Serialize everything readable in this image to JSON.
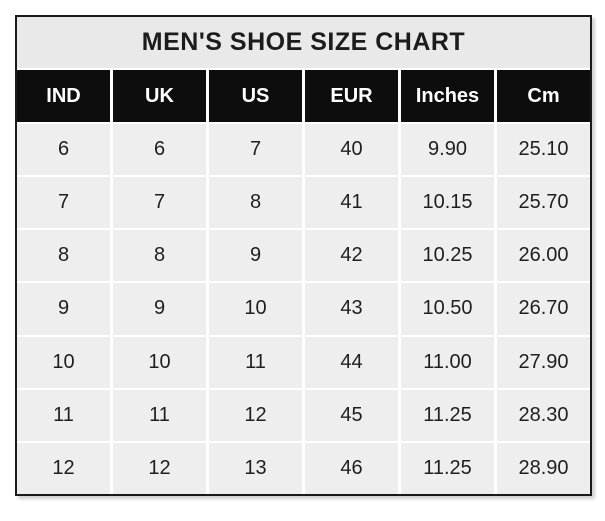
{
  "chart_data": {
    "type": "table",
    "title": "MEN'S SHOE SIZE CHART",
    "columns": [
      "IND",
      "UK",
      "US",
      "EUR",
      "Inches",
      "Cm"
    ],
    "rows": [
      [
        "6",
        "6",
        "7",
        "40",
        "9.90",
        "25.10"
      ],
      [
        "7",
        "7",
        "8",
        "41",
        "10.15",
        "25.70"
      ],
      [
        "8",
        "8",
        "9",
        "42",
        "10.25",
        "26.00"
      ],
      [
        "9",
        "9",
        "10",
        "43",
        "10.50",
        "26.70"
      ],
      [
        "10",
        "10",
        "11",
        "44",
        "11.00",
        "27.90"
      ],
      [
        "11",
        "11",
        "12",
        "45",
        "11.25",
        "28.30"
      ],
      [
        "12",
        "12",
        "13",
        "46",
        "11.25",
        "28.90"
      ]
    ]
  },
  "colors": {
    "border": "#1a1a1a",
    "header_bg": "#0d0d0d",
    "header_text": "#ffffff",
    "title_bg": "#e9e9e9",
    "cell_bg": "#eeeeee",
    "cell_text": "#1f1f1f",
    "grid_line": "#ffffff"
  }
}
